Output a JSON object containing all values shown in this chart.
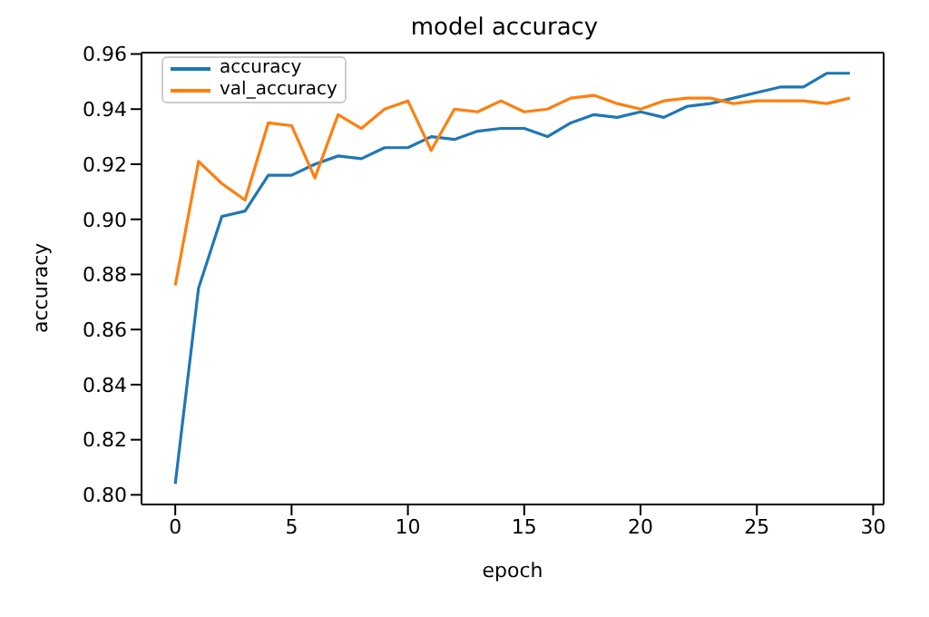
{
  "chart_data": {
    "type": "line",
    "title": "model accuracy",
    "xlabel": "epoch",
    "ylabel": "accuracy",
    "x": [
      0,
      1,
      2,
      3,
      4,
      5,
      6,
      7,
      8,
      9,
      10,
      11,
      12,
      13,
      14,
      15,
      16,
      17,
      18,
      19,
      20,
      21,
      22,
      23,
      24,
      25,
      26,
      27,
      28,
      29
    ],
    "series": [
      {
        "name": "accuracy",
        "color": "#1f77b4",
        "values": [
          0.804,
          0.875,
          0.901,
          0.903,
          0.916,
          0.916,
          0.92,
          0.923,
          0.922,
          0.926,
          0.926,
          0.93,
          0.929,
          0.932,
          0.933,
          0.933,
          0.93,
          0.935,
          0.938,
          0.937,
          0.939,
          0.937,
          0.941,
          0.942,
          0.944,
          0.946,
          0.948,
          0.948,
          0.953,
          0.953
        ]
      },
      {
        "name": "val_accuracy",
        "color": "#ff7f0e",
        "values": [
          0.876,
          0.921,
          0.913,
          0.907,
          0.935,
          0.934,
          0.915,
          0.938,
          0.933,
          0.94,
          0.943,
          0.925,
          0.94,
          0.939,
          0.943,
          0.939,
          0.94,
          0.944,
          0.945,
          0.942,
          0.94,
          0.943,
          0.944,
          0.944,
          0.942,
          0.943,
          0.943,
          0.943,
          0.942,
          0.944
        ]
      }
    ],
    "xlim": [
      -1.45,
      30.45
    ],
    "xticks": [
      0,
      5,
      10,
      15,
      20,
      25,
      30
    ],
    "ylim": [
      0.7965,
      0.9605
    ],
    "yticks": [
      {
        "value": 0.8,
        "label": "0.80"
      },
      {
        "value": 0.82,
        "label": "0.82"
      },
      {
        "value": 0.84,
        "label": "0.84"
      },
      {
        "value": 0.86,
        "label": "0.86"
      },
      {
        "value": 0.88,
        "label": "0.88"
      },
      {
        "value": 0.9,
        "label": "0.90"
      },
      {
        "value": 0.92,
        "label": "0.92"
      },
      {
        "value": 0.94,
        "label": "0.94"
      },
      {
        "value": 0.96,
        "label": "0.96"
      }
    ],
    "grid": false,
    "legend": "top left",
    "marker": "none",
    "line_style": "solid"
  }
}
